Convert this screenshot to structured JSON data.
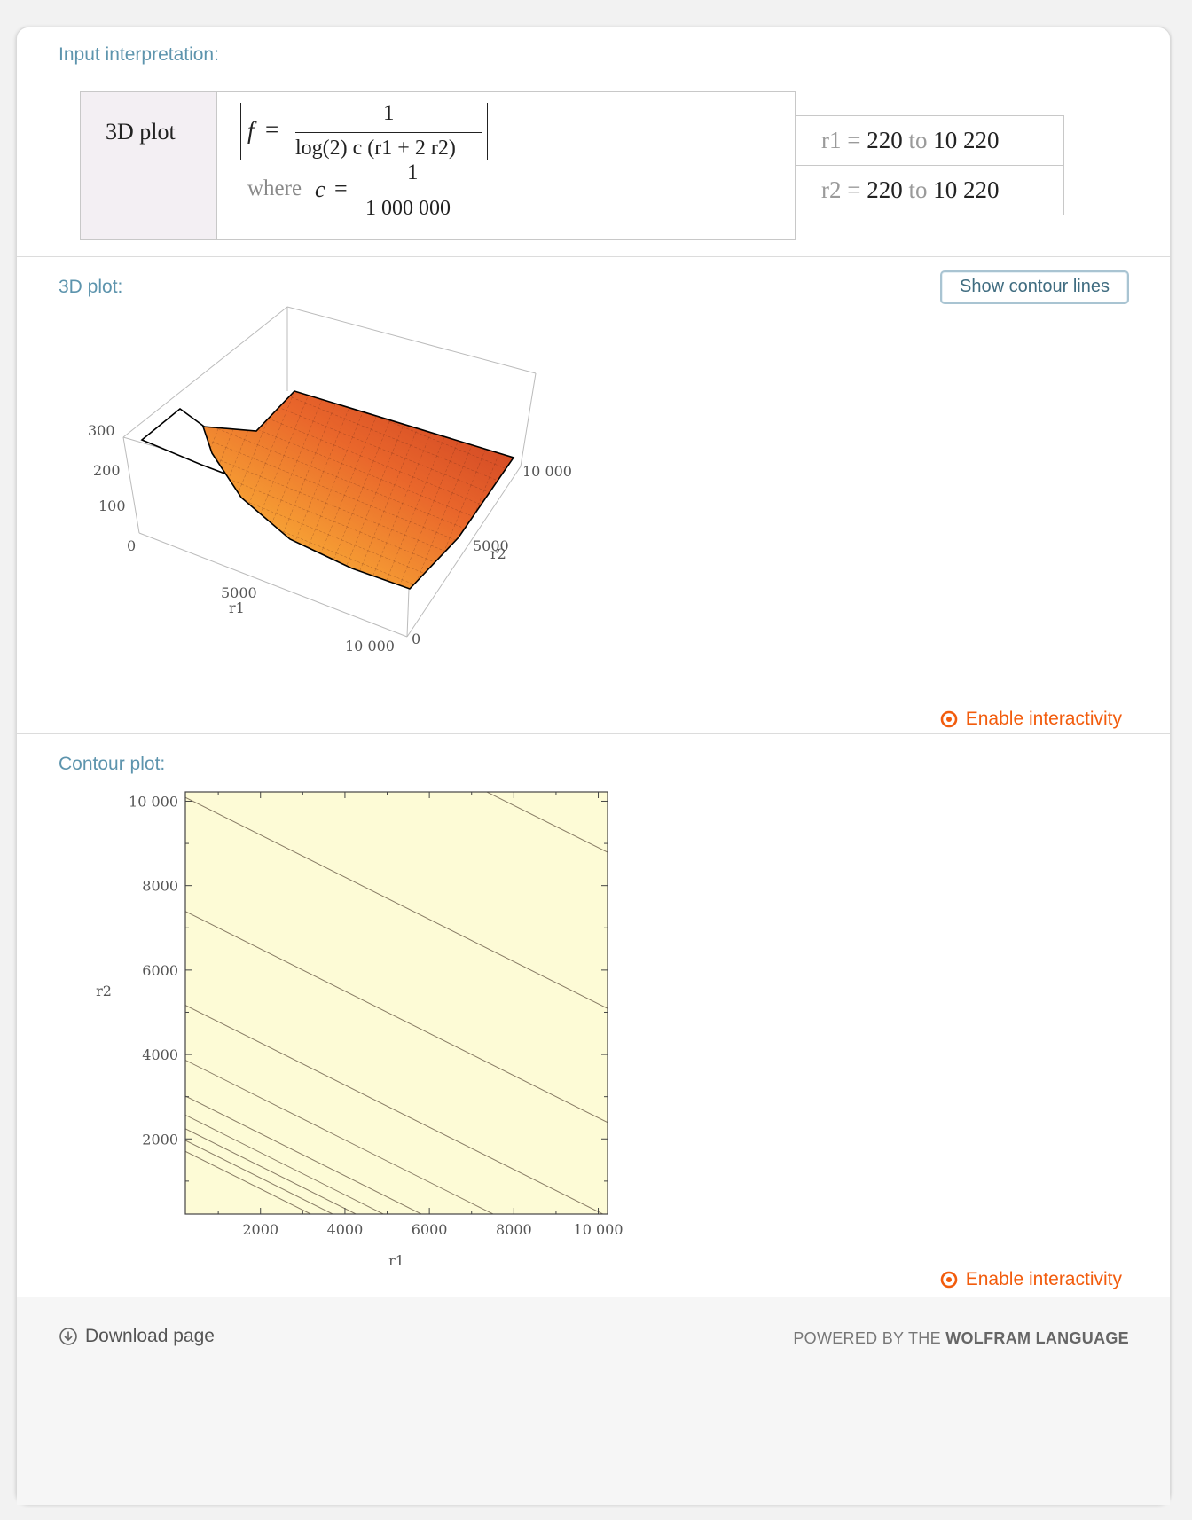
{
  "pods": {
    "input": {
      "title": "Input interpretation:",
      "header": "3D plot",
      "formula": {
        "f_label": "f",
        "equals": "=",
        "numerator": "1",
        "denominator": "log(2) c (r1 + 2 r2)",
        "where_word": "where",
        "c_label": "c",
        "c_numerator": "1",
        "c_denominator": "1 000 000"
      },
      "ranges": [
        {
          "var": "r1",
          "eq": "=",
          "from": "220",
          "to_word": "to",
          "to": "10 220"
        },
        {
          "var": "r2",
          "eq": "=",
          "from": "220",
          "to_word": "to",
          "to": "10 220"
        }
      ]
    },
    "plot3d": {
      "title": "3D plot:",
      "contour_button": "Show contour lines",
      "enable_label": "Enable interactivity",
      "z_ticks": [
        "300",
        "200",
        "100",
        "0"
      ],
      "x_ticks": [
        "5000",
        "10 000"
      ],
      "x_label": "r1",
      "y_ticks": [
        "0",
        "5000",
        "10 000"
      ],
      "y_label": "r2"
    },
    "contour": {
      "title": "Contour plot:",
      "enable_label": "Enable interactivity"
    }
  },
  "footer": {
    "download_label": "Download page",
    "powered_prefix": "POWERED BY THE ",
    "powered_brand": "WOLFRAM LANGUAGE"
  },
  "colors": {
    "accent_title": "#5d94ad",
    "enable_orange": "#f25c0d",
    "contour_palette": [
      "#fdfbd6",
      "#fdefb4",
      "#fde29a",
      "#fcd07c",
      "#fbbf62",
      "#f9a845",
      "#f28f2e",
      "#e27a2c",
      "#cc5e2a",
      "#b63a20",
      "#9b2118"
    ]
  },
  "chart_data": {
    "type": "heatmap",
    "xlabel": "r1",
    "ylabel": "r2",
    "x_ticks": [
      2000,
      4000,
      6000,
      8000,
      10000
    ],
    "x_tick_labels": [
      "2000",
      "4000",
      "6000",
      "8000",
      "10 000"
    ],
    "y_ticks": [
      2000,
      4000,
      6000,
      8000,
      10000
    ],
    "y_tick_labels": [
      "2000",
      "4000",
      "6000",
      "8000",
      "10 000"
    ],
    "xlim": [
      220,
      10220
    ],
    "ylim": [
      220,
      10220
    ],
    "contour_levels_r1_plus_2r2": [
      3630,
      4150,
      4700,
      5350,
      6250,
      7950,
      10550,
      15000,
      20400,
      27800
    ],
    "fill_colors": [
      "#fdfbd6",
      "#fdefb4",
      "#fde29a",
      "#fcd07c",
      "#fbbf62",
      "#f9a845",
      "#f28f2e",
      "#e27a2c",
      "#cc5e2a",
      "#b63a20",
      "#9b2118"
    ]
  }
}
